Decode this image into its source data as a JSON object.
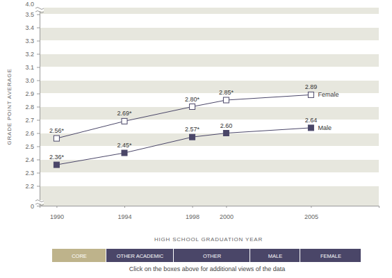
{
  "chart_data": {
    "type": "line",
    "x_label": "HIGH SCHOOL GRADUATION YEAR",
    "y_label": "GRADE POINT AVERAGE",
    "x": [
      1990,
      1994,
      1998,
      2000,
      2005
    ],
    "xlim": [
      1989,
      2009
    ],
    "xticks": [
      1990,
      1994,
      1998,
      2000,
      2005
    ],
    "ylim": [
      2.05,
      3.55
    ],
    "yticks": [
      2.2,
      2.3,
      2.4,
      2.5,
      2.6,
      2.7,
      2.8,
      2.9,
      {
        "value": 3,
        "label": "3.0"
      },
      3.1,
      3.2,
      3.3,
      3.4,
      3.5
    ],
    "grid": true,
    "data_labels": true,
    "annotations": [
      "4.0",
      "0"
    ],
    "series": [
      {
        "name": "Female",
        "color": "#4a4668",
        "marker": "square-open",
        "line_style": "solid",
        "values": [
          2.56,
          2.69,
          2.8,
          2.85,
          2.89
        ],
        "value_labels": [
          "2.56*",
          "2.69*",
          "2.80*",
          "2.85*",
          "2.89"
        ]
      },
      {
        "name": "Male",
        "color": "#4a4668",
        "marker": "square",
        "line_style": "solid",
        "values": [
          2.36,
          2.45,
          2.57,
          2.6,
          2.64
        ],
        "value_labels": [
          "2.36*",
          "2.45*",
          "2.57*",
          "2.60",
          "2.64"
        ]
      }
    ]
  },
  "nav": {
    "buttons": [
      "CORE",
      "OTHER ACADEMIC",
      "OTHER",
      "MALE",
      "FEMALE"
    ],
    "note": "Click on the boxes above for additional views of the data"
  }
}
